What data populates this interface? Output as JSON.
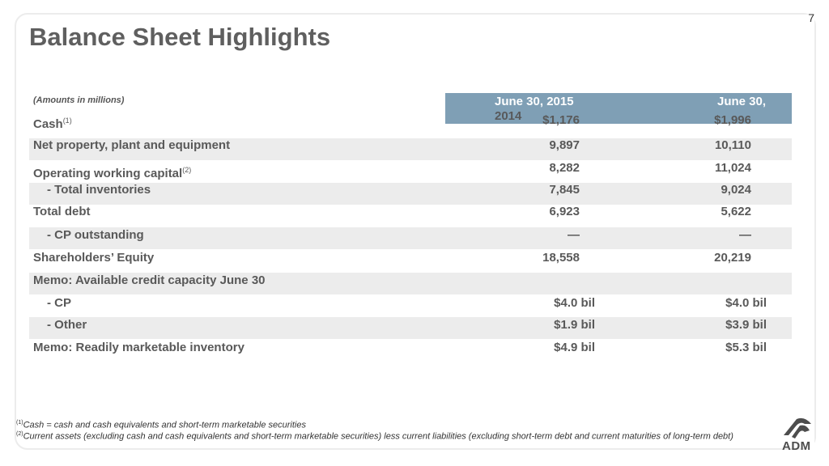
{
  "slide_number": "7",
  "title": "Balance Sheet Highlights",
  "amounts_note": "(Amounts in millions)",
  "headers": {
    "col1_line1": "June 30, 2015",
    "col2_line1": "June 30,",
    "col_wrap": "2014"
  },
  "rows": [
    {
      "label": "Cash",
      "sup": "(1)",
      "v2015": "$1,176",
      "v2014": "$1,996"
    },
    {
      "label": "Net property, plant and equipment",
      "v2015": "9,897",
      "v2014": "10,110"
    },
    {
      "label": "Operating working capital",
      "sup": "(2)",
      "v2015": "8,282",
      "v2014": "11,024"
    },
    {
      "label": "- Total inventories",
      "v2015": "7,845",
      "v2014": "9,024"
    },
    {
      "label": "Total debt",
      "v2015": "6,923",
      "v2014": "5,622"
    },
    {
      "label": "- CP outstanding",
      "v2015": "—",
      "v2014": "—"
    },
    {
      "label": "Shareholders’ Equity",
      "v2015": "18,558",
      "v2014": "20,219"
    },
    {
      "label": "Memo: Available credit capacity June 30",
      "v2015": "",
      "v2014": ""
    },
    {
      "label": "- CP",
      "v2015": "$4.0 bil",
      "v2014": "$4.0 bil"
    },
    {
      "label": "- Other",
      "v2015": "$1.9 bil",
      "v2014": "$3.9 bil"
    },
    {
      "label": "Memo: Readily marketable inventory",
      "v2015": "$4.9 bil",
      "v2014": "$5.3 bil"
    }
  ],
  "footnotes": [
    {
      "mark": "(1)",
      "text": "Cash = cash and cash equivalents and short-term marketable securities"
    },
    {
      "mark": "(2)",
      "text": "Current assets (excluding cash and cash equivalents and short-term marketable securities) less current liabilities (excluding short-term debt and current maturities of long-term debt)"
    }
  ],
  "logo": {
    "icon": "adm-logo-icon",
    "text": "ADM"
  }
}
